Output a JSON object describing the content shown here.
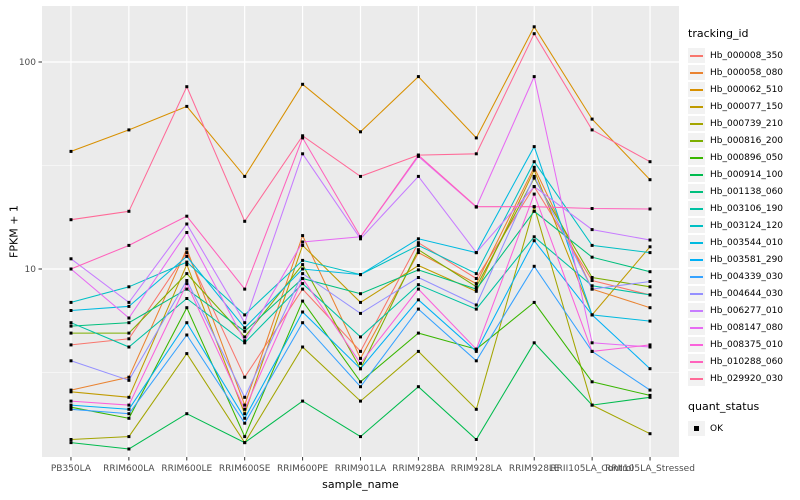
{
  "figure": {
    "background": "#FFFFFF",
    "panel_background": "#EBEBEB",
    "grid_color": "#FFFFFF",
    "point_color": "#000000",
    "axis_text_color": "#4D4D4D",
    "tick_mark_color": "#333333"
  },
  "chart_data": {
    "type": "line",
    "title": "",
    "xlabel": "sample_name",
    "ylabel": "FPKM + 1",
    "y_scale": "log10",
    "ylim": [
      1.2,
      180
    ],
    "grid": true,
    "legend_position": "right",
    "y_major_ticks": [
      {
        "value": 100,
        "label": "100"
      },
      {
        "value": 10,
        "label": "10"
      }
    ],
    "y_minor_gridlines": [
      3.1623,
      31.6228
    ],
    "categories": [
      "PB350LA",
      "RRIM600LA",
      "RRIM600LE",
      "RRIM600SE",
      "RRIM600PE",
      "RRIM901LA",
      "RRIM928BA",
      "RRIM928LA",
      "RRIM928LE",
      "RRII105LA_Control",
      "RRII105LA_Stressed"
    ],
    "series": [
      {
        "name": "Hb_000008_350",
        "color": "#F8766D",
        "values": [
          4.3,
          4.6,
          12,
          3.0,
          8.0,
          4.0,
          13.4,
          9.0,
          25,
          8.8,
          7.5
        ]
      },
      {
        "name": "Hb_000058_080",
        "color": "#EA8331",
        "values": [
          2.6,
          3.0,
          12.5,
          2.2,
          14.5,
          3.7,
          12.0,
          8.5,
          31,
          8.0,
          6.5
        ]
      },
      {
        "name": "Hb_000062_510",
        "color": "#D89000",
        "values": [
          37,
          47,
          61,
          28,
          78,
          46,
          85,
          43,
          148,
          53,
          27
        ]
      },
      {
        "name": "Hb_000077_150",
        "color": "#C09B00",
        "values": [
          2.55,
          2.4,
          10.5,
          2.0,
          13.0,
          6.9,
          10.4,
          7.8,
          30,
          6.0,
          12.8
        ]
      },
      {
        "name": "Hb_000739_210",
        "color": "#A3A500",
        "values": [
          1.5,
          1.55,
          3.9,
          1.45,
          4.2,
          2.3,
          4.0,
          2.1,
          20,
          2.2,
          1.6
        ]
      },
      {
        "name": "Hb_000816_200",
        "color": "#7CAE00",
        "values": [
          4.9,
          4.9,
          9.5,
          4.7,
          10.5,
          3.3,
          12.4,
          8.2,
          27.5,
          9.1,
          8.2
        ]
      },
      {
        "name": "Hb_000896_050",
        "color": "#39B600",
        "values": [
          2.15,
          1.9,
          6.5,
          1.55,
          7.0,
          2.85,
          4.9,
          4.1,
          6.9,
          2.85,
          2.45
        ]
      },
      {
        "name": "Hb_000914_100",
        "color": "#00BB4E",
        "values": [
          1.45,
          1.35,
          2.0,
          1.45,
          2.3,
          1.55,
          2.7,
          1.5,
          4.4,
          2.2,
          2.4
        ]
      },
      {
        "name": "Hb_001138_060",
        "color": "#00BF7D",
        "values": [
          5.3,
          5.5,
          8.0,
          5.0,
          9.0,
          7.6,
          9.9,
          8.0,
          19,
          11.4,
          9.7
        ]
      },
      {
        "name": "Hb_003106_190",
        "color": "#00C1A3",
        "values": [
          5.5,
          4.2,
          7.2,
          4.4,
          8.5,
          4.7,
          8.4,
          6.4,
          14.3,
          8.3,
          7.5
        ]
      },
      {
        "name": "Hb_003124_120",
        "color": "#00BFC4",
        "values": [
          6.9,
          8.2,
          10.8,
          6.0,
          11.0,
          9.4,
          13.0,
          9.5,
          33,
          13.0,
          12.0
        ]
      },
      {
        "name": "Hb_003544_010",
        "color": "#00BAE0",
        "values": [
          6.3,
          6.6,
          11.5,
          5.2,
          10.0,
          9.4,
          14.0,
          12.0,
          39,
          6.0,
          5.6
        ]
      },
      {
        "name": "Hb_003581_290",
        "color": "#00B0F6",
        "values": [
          2.2,
          2.1,
          5.5,
          1.9,
          6.2,
          3.3,
          7.1,
          4.0,
          13.7,
          6.0,
          3.3
        ]
      },
      {
        "name": "Hb_004339_030",
        "color": "#35A2FF",
        "values": [
          2.1,
          2.0,
          4.8,
          1.8,
          5.5,
          2.7,
          6.4,
          3.6,
          10.3,
          4.0,
          2.6
        ]
      },
      {
        "name": "Hb_004644_030",
        "color": "#9590FF",
        "values": [
          3.6,
          2.9,
          8.8,
          2.4,
          9.5,
          6.1,
          9.1,
          6.7,
          28,
          8.0,
          8.7
        ]
      },
      {
        "name": "Hb_006277_010",
        "color": "#C77CFF",
        "values": [
          11.2,
          6.9,
          16.5,
          5.5,
          36,
          14.0,
          28,
          12.0,
          25,
          15.5,
          13.8
        ]
      },
      {
        "name": "Hb_008147_080",
        "color": "#E76BF3",
        "values": [
          10.0,
          5.8,
          15.0,
          4.5,
          13.5,
          14.3,
          35.0,
          19.9,
          85,
          4.4,
          4.2
        ]
      },
      {
        "name": "Hb_008375_010",
        "color": "#FA62DB",
        "values": [
          2.3,
          2.2,
          8.5,
          2.1,
          9.0,
          3.5,
          8.0,
          4.1,
          23,
          4.0,
          4.3
        ]
      },
      {
        "name": "Hb_010288_060",
        "color": "#FF62BC",
        "values": [
          10.0,
          13.0,
          18.0,
          8.0,
          43,
          14.3,
          35.5,
          20.0,
          20.0,
          19.6,
          19.5
        ]
      },
      {
        "name": "Hb_029920_030",
        "color": "#FF6A98",
        "values": [
          17.3,
          19,
          76,
          17,
          44,
          28,
          35.5,
          36,
          137,
          47,
          33
        ]
      }
    ],
    "legend": {
      "series_title": "tracking_id",
      "quant_title": "quant_status",
      "quant_items": [
        {
          "label": "OK",
          "marker": "black-square"
        }
      ]
    }
  }
}
